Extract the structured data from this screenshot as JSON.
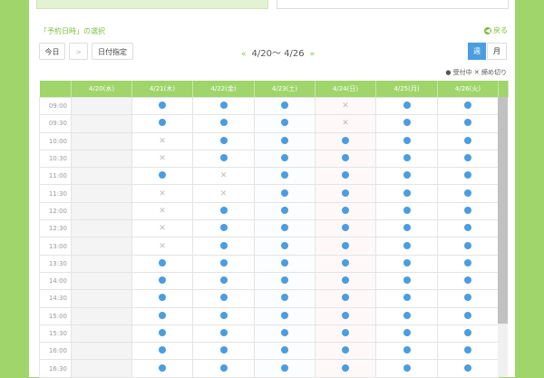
{
  "section_title": "「予約日時」の選択",
  "back_label": "戻る",
  "toolbar": {
    "today": "今日",
    "next": ">",
    "date_select": "日付指定",
    "prev_arrow": "«",
    "range": "4/20〜 4/26",
    "next_arrow": "»",
    "week": "週",
    "month": "月"
  },
  "legend": {
    "open": "● 受付中",
    "closed": "✕ 締め切り"
  },
  "colors": {
    "accent": "#9fd56a",
    "dot": "#4a9de0"
  },
  "days": [
    "4/20(水)",
    "4/21(木)",
    "4/22(金)",
    "4/23(土)",
    "4/24(日)",
    "4/25(月)",
    "4/26(火)"
  ],
  "times": [
    "09:00",
    "09:30",
    "10:00",
    "10:30",
    "11:00",
    "11:30",
    "12:00",
    "12:30",
    "13:00",
    "13:30",
    "14:00",
    "14:30",
    "15:00",
    "15:30",
    "16:00",
    "16:30"
  ],
  "availability": [
    [
      "-",
      "o",
      "o",
      "o",
      "x",
      "o",
      "o"
    ],
    [
      "-",
      "o",
      "o",
      "o",
      "x",
      "o",
      "o"
    ],
    [
      "-",
      "x",
      "o",
      "o",
      "o",
      "o",
      "o"
    ],
    [
      "-",
      "x",
      "o",
      "o",
      "o",
      "o",
      "o"
    ],
    [
      "-",
      "o",
      "x",
      "o",
      "o",
      "o",
      "o"
    ],
    [
      "-",
      "x",
      "x",
      "o",
      "o",
      "o",
      "o"
    ],
    [
      "-",
      "x",
      "o",
      "o",
      "o",
      "o",
      "o"
    ],
    [
      "-",
      "x",
      "o",
      "o",
      "o",
      "o",
      "o"
    ],
    [
      "-",
      "x",
      "o",
      "o",
      "o",
      "o",
      "o"
    ],
    [
      "-",
      "o",
      "o",
      "o",
      "o",
      "o",
      "o"
    ],
    [
      "-",
      "o",
      "o",
      "o",
      "o",
      "o",
      "o"
    ],
    [
      "-",
      "o",
      "o",
      "o",
      "o",
      "o",
      "o"
    ],
    [
      "-",
      "o",
      "o",
      "o",
      "o",
      "o",
      "o"
    ],
    [
      "-",
      "o",
      "o",
      "o",
      "o",
      "o",
      "o"
    ],
    [
      "-",
      "o",
      "o",
      "o",
      "o",
      "o",
      "o"
    ],
    [
      "-",
      "o",
      "o",
      "o",
      "o",
      "o",
      "o"
    ]
  ]
}
